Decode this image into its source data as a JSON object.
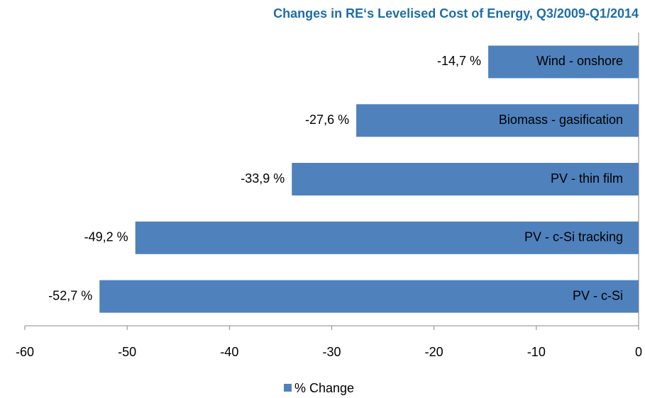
{
  "chart_data": {
    "type": "barh",
    "title": "Changes in RE‘s Levelised Cost of Energy, Q3/2009-Q1/2014",
    "categories": [
      "Wind - onshore",
      "Biomass - gasification",
      "PV - thin film",
      "PV - c-Si tracking",
      "PV - c-Si"
    ],
    "series": [
      {
        "name": "% Change",
        "color": "#4f81bd",
        "values": [
          -14.7,
          -27.6,
          -33.9,
          -49.2,
          -52.7
        ],
        "value_labels": [
          "-14,7 %",
          "-27,6 %",
          "-33,9 %",
          "-49,2 %",
          "-52,7 %"
        ]
      }
    ],
    "xlim": [
      -60,
      0
    ],
    "xticks": [
      -60,
      -50,
      -40,
      -30,
      -20,
      -10,
      0
    ],
    "legend": "bottom"
  }
}
